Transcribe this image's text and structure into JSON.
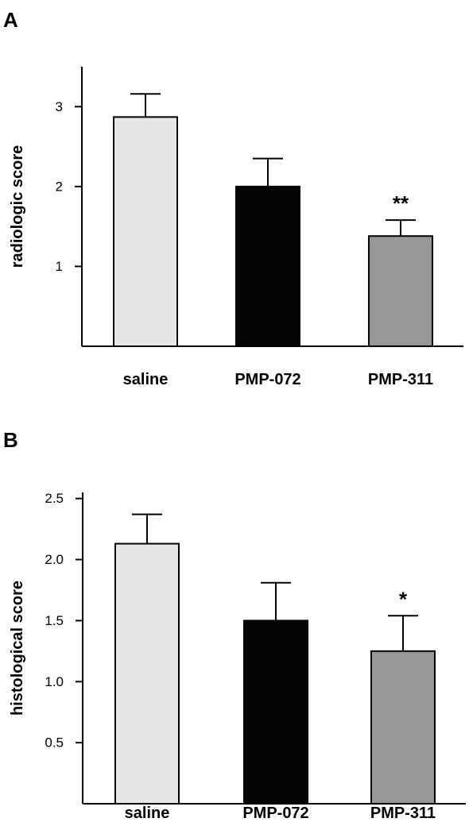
{
  "chart_data": [
    {
      "type": "bar",
      "panel": "A",
      "categories": [
        "saline",
        "PMP-072",
        "PMP-311"
      ],
      "values": [
        2.87,
        2.0,
        1.38
      ],
      "errors": [
        0.29,
        0.35,
        0.2
      ],
      "significance": [
        "",
        "",
        "**"
      ],
      "ylabel": "radiologic score",
      "yticks": [
        1,
        2,
        3
      ],
      "ytick_labels": [
        "1",
        "2",
        "3"
      ],
      "ylim": [
        0,
        3.5
      ],
      "colors": [
        "#e6e7e6",
        "#050505",
        "#979797"
      ],
      "grid": false,
      "legend": "none"
    },
    {
      "type": "bar",
      "panel": "B",
      "categories": [
        "saline",
        "PMP-072",
        "PMP-311"
      ],
      "values": [
        2.13,
        1.5,
        1.25
      ],
      "errors": [
        0.24,
        0.31,
        0.29
      ],
      "significance": [
        "",
        "",
        "*"
      ],
      "ylabel": "histological score",
      "yticks": [
        0.5,
        1.0,
        1.5,
        2.0,
        2.5
      ],
      "ytick_labels": [
        "0.5",
        "1.0",
        "1.5",
        "2.0",
        "2.5"
      ],
      "ylim": [
        0,
        2.55
      ],
      "colors": [
        "#e6e7e6",
        "#050505",
        "#979797"
      ],
      "grid": false,
      "legend": "none"
    }
  ]
}
